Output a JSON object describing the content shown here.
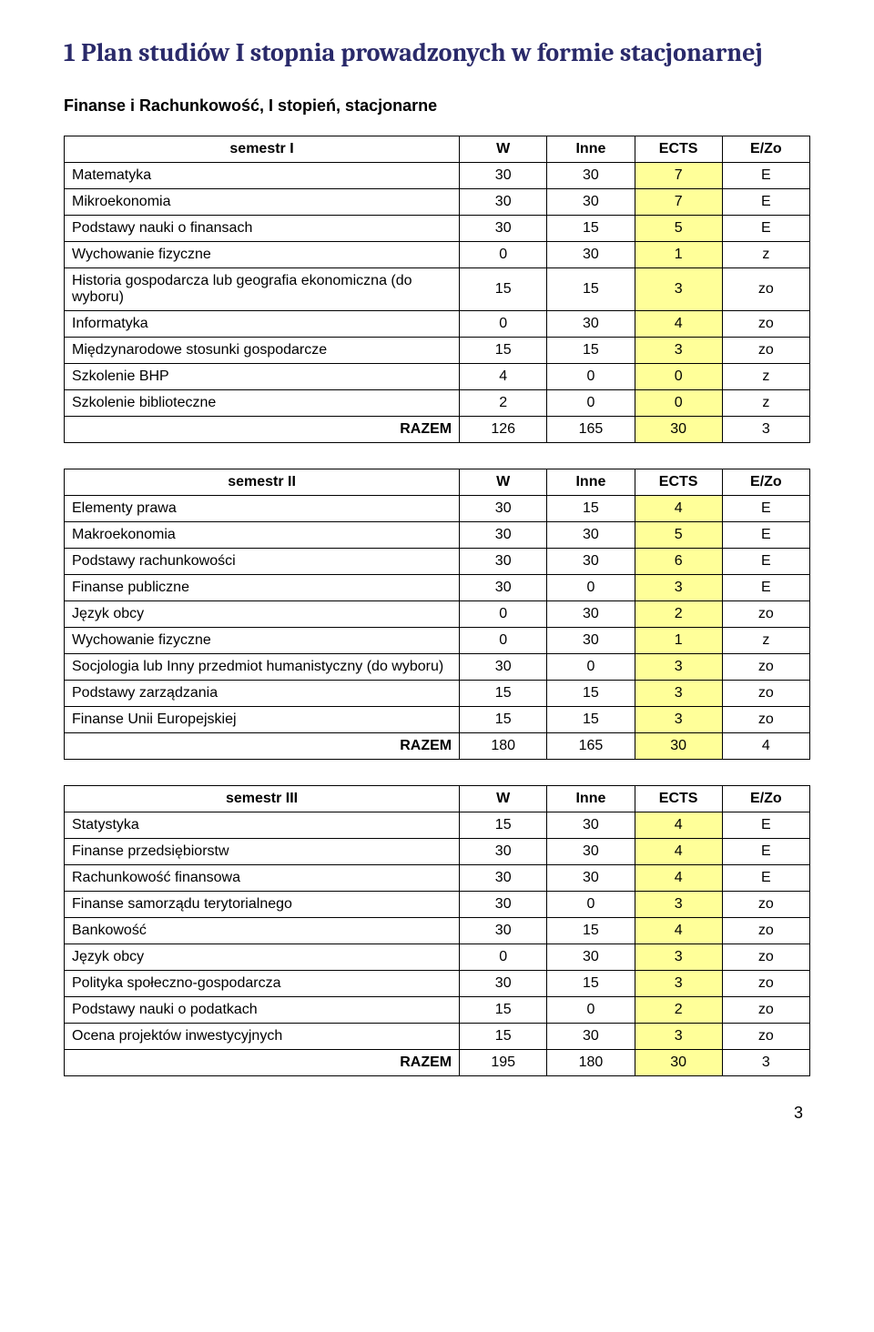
{
  "heading": "1 Plan studiów I stopnia prowadzonych w formie stacjonarnej",
  "subtitle": "Finanse i Rachunkowość, I stopień, stacjonarne",
  "page_number": "3",
  "colors": {
    "heading_color": "#2a2a6a",
    "highlight_bg": "#ffff99",
    "border": "#000000",
    "background": "#ffffff"
  },
  "tables": [
    {
      "header": [
        "semestr I",
        "W",
        "Inne",
        "ECTS",
        "E/Zo"
      ],
      "rows": [
        {
          "label": "Matematyka",
          "w": "30",
          "inne": "30",
          "ects": "7",
          "ez": "E"
        },
        {
          "label": "Mikroekonomia",
          "w": "30",
          "inne": "30",
          "ects": "7",
          "ez": "E"
        },
        {
          "label": "Podstawy nauki o finansach",
          "w": "30",
          "inne": "15",
          "ects": "5",
          "ez": "E"
        },
        {
          "label": "Wychowanie fizyczne",
          "w": "0",
          "inne": "30",
          "ects": "1",
          "ez": "z"
        },
        {
          "label": "Historia gospodarcza lub geografia ekonomiczna (do wyboru)",
          "w": "15",
          "inne": "15",
          "ects": "3",
          "ez": "zo"
        },
        {
          "label": "Informatyka",
          "w": "0",
          "inne": "30",
          "ects": "4",
          "ez": "zo"
        },
        {
          "label": "Międzynarodowe stosunki gospodarcze",
          "w": "15",
          "inne": "15",
          "ects": "3",
          "ez": "zo"
        },
        {
          "label": "Szkolenie BHP",
          "w": "4",
          "inne": "0",
          "ects": "0",
          "ez": "z"
        },
        {
          "label": "Szkolenie biblioteczne",
          "w": "2",
          "inne": "0",
          "ects": "0",
          "ez": "z"
        }
      ],
      "razem": {
        "label": "RAZEM",
        "w": "126",
        "inne": "165",
        "ects": "30",
        "ez": "3"
      }
    },
    {
      "header": [
        "semestr II",
        "W",
        "Inne",
        "ECTS",
        "E/Zo"
      ],
      "rows": [
        {
          "label": "Elementy prawa",
          "w": "30",
          "inne": "15",
          "ects": "4",
          "ez": "E"
        },
        {
          "label": "Makroekonomia",
          "w": "30",
          "inne": "30",
          "ects": "5",
          "ez": "E"
        },
        {
          "label": "Podstawy rachunkowości",
          "w": "30",
          "inne": "30",
          "ects": "6",
          "ez": "E"
        },
        {
          "label": "Finanse publiczne",
          "w": "30",
          "inne": "0",
          "ects": "3",
          "ez": "E"
        },
        {
          "label": "Język obcy",
          "w": "0",
          "inne": "30",
          "ects": "2",
          "ez": "zo"
        },
        {
          "label": "Wychowanie fizyczne",
          "w": "0",
          "inne": "30",
          "ects": "1",
          "ez": "z"
        },
        {
          "label": "Socjologia lub Inny przedmiot humanistyczny (do wyboru)",
          "w": "30",
          "inne": "0",
          "ects": "3",
          "ez": "zo"
        },
        {
          "label": "Podstawy zarządzania",
          "w": "15",
          "inne": "15",
          "ects": "3",
          "ez": "zo"
        },
        {
          "label": "Finanse Unii Europejskiej",
          "w": "15",
          "inne": "15",
          "ects": "3",
          "ez": "zo"
        }
      ],
      "razem": {
        "label": "RAZEM",
        "w": "180",
        "inne": "165",
        "ects": "30",
        "ez": "4"
      }
    },
    {
      "header": [
        "semestr III",
        "W",
        "Inne",
        "ECTS",
        "E/Zo"
      ],
      "rows": [
        {
          "label": "Statystyka",
          "w": "15",
          "inne": "30",
          "ects": "4",
          "ez": "E"
        },
        {
          "label": "Finanse przedsiębiorstw",
          "w": "30",
          "inne": "30",
          "ects": "4",
          "ez": "E"
        },
        {
          "label": "Rachunkowość finansowa",
          "w": "30",
          "inne": "30",
          "ects": "4",
          "ez": "E"
        },
        {
          "label": "Finanse samorządu terytorialnego",
          "w": "30",
          "inne": "0",
          "ects": "3",
          "ez": "zo"
        },
        {
          "label": "Bankowość",
          "w": "30",
          "inne": "15",
          "ects": "4",
          "ez": "zo"
        },
        {
          "label": "Język obcy",
          "w": "0",
          "inne": "30",
          "ects": "3",
          "ez": "zo"
        },
        {
          "label": "Polityka społeczno-gospodarcza",
          "w": "30",
          "inne": "15",
          "ects": "3",
          "ez": "zo"
        },
        {
          "label": "Podstawy nauki o podatkach",
          "w": "15",
          "inne": "0",
          "ects": "2",
          "ez": "zo"
        },
        {
          "label": "Ocena projektów inwestycyjnych",
          "w": "15",
          "inne": "30",
          "ects": "3",
          "ez": "zo"
        }
      ],
      "razem": {
        "label": "RAZEM",
        "w": "195",
        "inne": "180",
        "ects": "30",
        "ez": "3"
      }
    }
  ]
}
